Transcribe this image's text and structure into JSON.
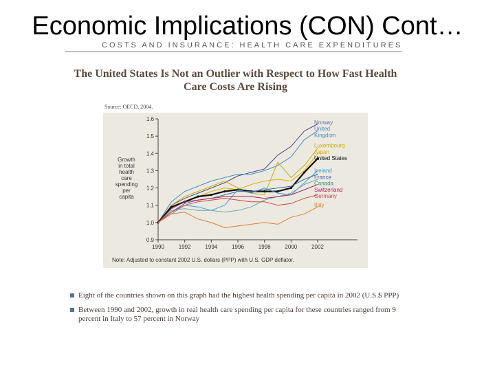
{
  "slide": {
    "title": "Economic Implications (CON) Cont…",
    "section_header": "COSTS AND INSURANCE: HEALTH CARE EXPENDITURES"
  },
  "chart_data": {
    "type": "line",
    "title": "The United States Is Not an Outlier with Respect to How Fast Health Care Costs Are Rising",
    "source": "Source: OECD, 2004.",
    "note": "Note: Adjusted to constant 2002 U.S. dollars (PPP) with U.S. GDP deflator.",
    "ylabel_lines": [
      "Growth",
      "in total",
      "health",
      "care",
      "spending",
      "per",
      "capita"
    ],
    "xlabel": "",
    "x": [
      1990,
      1991,
      1992,
      1993,
      1994,
      1995,
      1996,
      1997,
      1998,
      1999,
      2000,
      2001,
      2002
    ],
    "x_ticks": [
      1990,
      1992,
      1994,
      1996,
      1998,
      2000,
      2002
    ],
    "x_tick_labels": [
      "1990",
      "1992",
      "1994",
      "1996",
      "1998",
      "2000",
      "2002"
    ],
    "xlim": [
      1990,
      2005
    ],
    "y_ticks": [
      0.9,
      1.0,
      1.1,
      1.2,
      1.3,
      1.4,
      1.5,
      1.6
    ],
    "y_tick_labels": [
      "0.9",
      "1.0",
      "1.1",
      "1.2",
      "1.3",
      "1.4",
      "1.5",
      "1.6"
    ],
    "ylim": [
      0.9,
      1.6
    ],
    "grid": false,
    "legend": "right, inline labels",
    "series": [
      {
        "name": "Norway",
        "color": "#4a4a8c",
        "values": [
          1.0,
          1.1,
          1.14,
          1.17,
          1.2,
          1.23,
          1.27,
          1.29,
          1.31,
          1.39,
          1.44,
          1.53,
          1.57
        ]
      },
      {
        "name": "United Kingdom",
        "color": "#4a8cc4",
        "values": [
          1.0,
          1.12,
          1.18,
          1.21,
          1.24,
          1.26,
          1.28,
          1.28,
          1.3,
          1.33,
          1.38,
          1.48,
          1.53
        ]
      },
      {
        "name": "Luxembourg",
        "color": "#c4b000",
        "values": [
          1.0,
          1.1,
          1.15,
          1.18,
          1.21,
          1.24,
          1.2,
          1.17,
          1.16,
          1.35,
          1.26,
          1.33,
          1.43
        ]
      },
      {
        "name": "Japan",
        "color": "#e0b000",
        "values": [
          1.0,
          1.09,
          1.12,
          1.15,
          1.18,
          1.2,
          1.19,
          1.22,
          1.24,
          1.25,
          1.24,
          1.3,
          1.4
        ]
      },
      {
        "name": "United States",
        "color": "#111111",
        "values": [
          1.0,
          1.09,
          1.12,
          1.15,
          1.16,
          1.18,
          1.19,
          1.18,
          1.18,
          1.18,
          1.2,
          1.29,
          1.37
        ]
      },
      {
        "name": "Iceland",
        "color": "#3aa0d8",
        "values": [
          1.0,
          1.05,
          1.1,
          1.09,
          1.07,
          1.1,
          1.19,
          1.17,
          1.2,
          1.17,
          1.16,
          1.23,
          1.3
        ]
      },
      {
        "name": "France",
        "color": "#4466aa",
        "values": [
          1.0,
          1.06,
          1.11,
          1.13,
          1.14,
          1.16,
          1.18,
          1.18,
          1.19,
          1.2,
          1.21,
          1.25,
          1.28
        ]
      },
      {
        "name": "Canada",
        "color": "#66aaaa",
        "values": [
          1.0,
          1.07,
          1.08,
          1.07,
          1.07,
          1.06,
          1.07,
          1.09,
          1.13,
          1.15,
          1.17,
          1.22,
          1.25
        ]
      },
      {
        "name": "Switzerland",
        "color": "#aa2255",
        "values": [
          1.0,
          1.08,
          1.12,
          1.13,
          1.14,
          1.15,
          1.15,
          1.15,
          1.14,
          1.15,
          1.16,
          1.19,
          1.22
        ]
      },
      {
        "name": "Germany",
        "color": "#cc4444",
        "values": [
          1.0,
          1.06,
          1.1,
          1.12,
          1.13,
          1.14,
          1.13,
          1.12,
          1.12,
          1.1,
          1.11,
          1.14,
          1.16
        ]
      },
      {
        "name": "Italy",
        "color": "#e08030",
        "values": [
          1.0,
          1.05,
          1.06,
          1.02,
          1.0,
          0.97,
          0.98,
          0.99,
          1.0,
          0.99,
          1.03,
          1.05,
          1.09
        ]
      }
    ],
    "label_colors": {
      "Norway": "#6a6aa8",
      "United Kingdom": "#4a8cc4",
      "Luxembourg": "#c4b000",
      "Japan": "#e0b000",
      "United States": "#111111",
      "Iceland": "#3aa0d8",
      "France": "#4466aa",
      "Canada": "#448888",
      "Switzerland": "#aa2255",
      "Germany": "#cc4444",
      "Italy": "#e08030"
    },
    "legend_labels": [
      {
        "series": "Norway",
        "lines": [
          "Norway"
        ]
      },
      {
        "series": "United Kingdom",
        "lines": [
          "United",
          "Kingdom"
        ]
      },
      {
        "series": "Luxembourg",
        "lines": [
          "Luxembourg"
        ]
      },
      {
        "series": "Japan",
        "lines": [
          "Japan"
        ]
      },
      {
        "series": "United States",
        "lines": [
          "United States"
        ]
      },
      {
        "series": "Iceland",
        "lines": [
          "Iceland"
        ]
      },
      {
        "series": "France",
        "lines": [
          "France"
        ]
      },
      {
        "series": "Canada",
        "lines": [
          "Canada"
        ]
      },
      {
        "series": "Switzerland",
        "lines": [
          "Switzerland"
        ]
      },
      {
        "series": "Germany",
        "lines": [
          "Germany"
        ]
      },
      {
        "series": "Italy",
        "lines": [
          "Italy"
        ]
      }
    ]
  },
  "bullets": [
    "Eight of the countries shown on this graph had the highest health spending per capita in 2002 (U.S.$ PPP)",
    "Between 1990 and 2002, growth in real health care spending per capita for these countries ranged from 9 percent in Italy to 57 percent in Norway"
  ],
  "colors": {
    "panel_bg": "#ece9e1",
    "heading": "#5a4a3e",
    "bullet_marker": "#5b6f93"
  }
}
